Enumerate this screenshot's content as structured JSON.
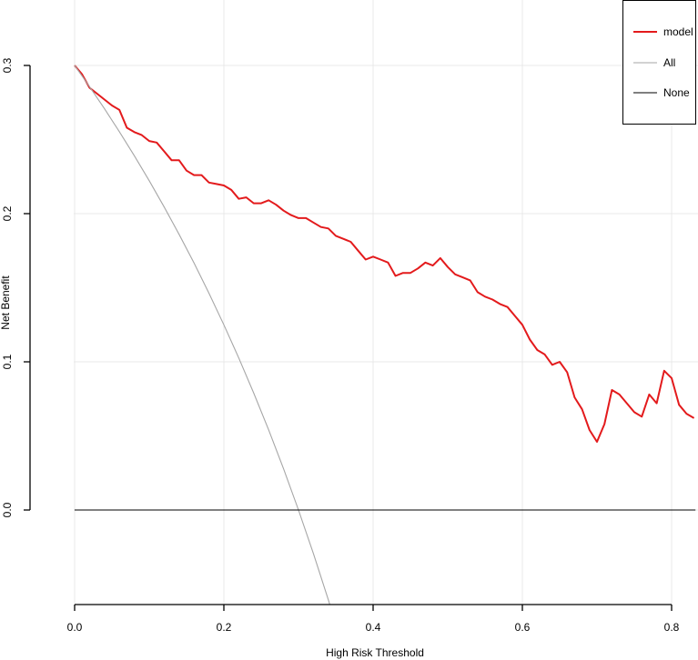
{
  "chart_data": {
    "type": "line",
    "title": "",
    "xlabel": "High Risk Threshold",
    "ylabel": "Net Benefit",
    "xlim": [
      0,
      0.832
    ],
    "ylim": [
      -0.065,
      0.33
    ],
    "xticks": [
      0,
      0.2,
      0.4,
      0.6,
      0.8
    ],
    "xtick_labels": [
      "0.0",
      "0.2",
      "0.4",
      "0.6",
      "0.8"
    ],
    "yticks": [
      0,
      0.1,
      0.2,
      0.3
    ],
    "ytick_labels": [
      "0.0",
      "0.1",
      "0.2",
      "0.3"
    ],
    "grid": true,
    "legend_position": "top-right",
    "series": [
      {
        "name": "model",
        "color": "#e31a1c",
        "x": [
          0,
          0.01,
          0.02,
          0.03,
          0.04,
          0.05,
          0.06,
          0.07,
          0.08,
          0.09,
          0.1,
          0.11,
          0.12,
          0.13,
          0.14,
          0.15,
          0.16,
          0.17,
          0.18,
          0.19,
          0.2,
          0.21,
          0.22,
          0.23,
          0.24,
          0.25,
          0.26,
          0.27,
          0.28,
          0.29,
          0.3,
          0.31,
          0.32,
          0.33,
          0.34,
          0.35,
          0.36,
          0.37,
          0.38,
          0.39,
          0.4,
          0.41,
          0.42,
          0.43,
          0.44,
          0.45,
          0.46,
          0.47,
          0.48,
          0.49,
          0.5,
          0.51,
          0.52,
          0.53,
          0.54,
          0.55,
          0.56,
          0.57,
          0.58,
          0.59,
          0.6,
          0.61,
          0.62,
          0.63,
          0.64,
          0.65,
          0.66,
          0.67,
          0.68,
          0.69,
          0.7,
          0.71,
          0.72,
          0.73,
          0.74,
          0.75,
          0.76,
          0.77,
          0.78,
          0.79,
          0.8,
          0.81,
          0.82,
          0.83
        ],
        "values": [
          0.3,
          0.294,
          0.285,
          0.281,
          0.277,
          0.273,
          0.27,
          0.258,
          0.255,
          0.253,
          0.249,
          0.248,
          0.242,
          0.236,
          0.236,
          0.229,
          0.226,
          0.226,
          0.221,
          0.22,
          0.219,
          0.216,
          0.21,
          0.211,
          0.207,
          0.207,
          0.209,
          0.206,
          0.202,
          0.199,
          0.197,
          0.197,
          0.194,
          0.191,
          0.19,
          0.185,
          0.183,
          0.181,
          0.175,
          0.169,
          0.171,
          0.169,
          0.167,
          0.158,
          0.16,
          0.16,
          0.163,
          0.167,
          0.165,
          0.17,
          0.164,
          0.159,
          0.157,
          0.155,
          0.147,
          0.144,
          0.142,
          0.139,
          0.137,
          0.131,
          0.125,
          0.115,
          0.108,
          0.105,
          0.098,
          0.1,
          0.093,
          0.076,
          0.068,
          0.054,
          0.046,
          0.058,
          0.081,
          0.078,
          0.072,
          0.066,
          0.063,
          0.078,
          0.072,
          0.094,
          0.089,
          0.071,
          0.065,
          0.062
        ]
      },
      {
        "name": "All",
        "color": "#a6a6a6",
        "prevalence": 0.3,
        "x": [
          0,
          0.02,
          0.04,
          0.06,
          0.08,
          0.1,
          0.12,
          0.14,
          0.16,
          0.18,
          0.2,
          0.22,
          0.24,
          0.26,
          0.28,
          0.3,
          0.32,
          0.34,
          0.342
        ],
        "values": [
          0.3,
          0.2857,
          0.2708,
          0.2553,
          0.2391,
          0.2222,
          0.2045,
          0.186,
          0.1667,
          0.1463,
          0.125,
          0.1026,
          0.0789,
          0.0541,
          0.0278,
          0.0,
          -0.0294,
          -0.0606,
          -0.0638
        ]
      },
      {
        "name": "None",
        "color": "#000000",
        "x": [
          0,
          0.832
        ],
        "values": [
          0,
          0
        ]
      }
    ]
  }
}
